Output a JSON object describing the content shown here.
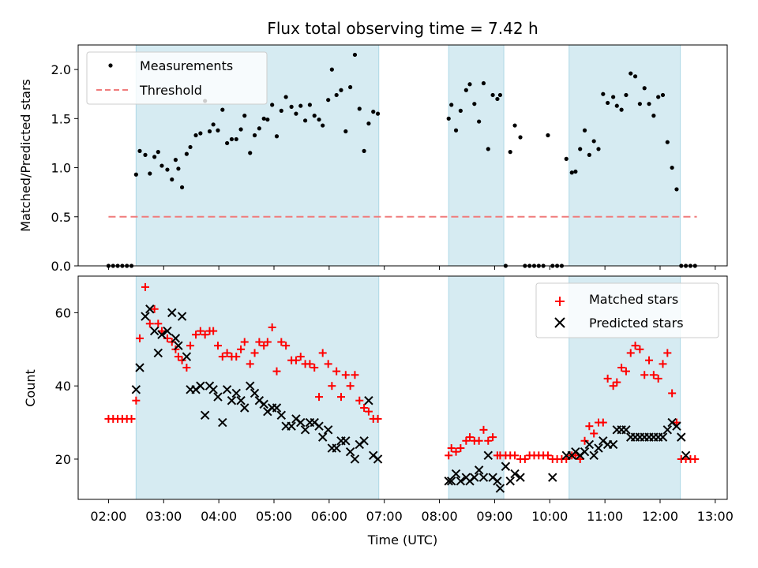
{
  "chart_data": [
    {
      "type": "scatter",
      "title": "Flux total observing time = 7.42 h",
      "xlabel": "",
      "ylabel": "Matched/Predicted stars",
      "xlim": [
        "01:27",
        "13:13"
      ],
      "ylim": [
        0,
        2.25
      ],
      "yticks": [
        "0.0",
        "0.5",
        "1.0",
        "1.5",
        "2.0"
      ],
      "grid": false,
      "legend_position": "top-left",
      "observing_windows": [
        [
          "02:30",
          "06:54"
        ],
        [
          "08:10",
          "09:10"
        ],
        [
          "10:21",
          "12:22"
        ]
      ],
      "threshold": {
        "name": "Threshold",
        "value": 0.5,
        "x_range": [
          "02:00",
          "12:40"
        ],
        "color": "#f07c7c"
      },
      "series": [
        {
          "name": "Measurements",
          "color": "#000000",
          "x": [
            "02:00",
            "02:05",
            "02:10",
            "02:15",
            "02:20",
            "02:25",
            "02:30",
            "02:34",
            "02:40",
            "02:45",
            "02:50",
            "02:54",
            "02:58",
            "03:04",
            "03:09",
            "03:13",
            "03:16",
            "03:20",
            "03:25",
            "03:29",
            "03:35",
            "03:40",
            "03:45",
            "03:50",
            "03:54",
            "03:59",
            "04:04",
            "04:09",
            "04:14",
            "04:19",
            "04:24",
            "04:28",
            "04:34",
            "04:39",
            "04:44",
            "04:49",
            "04:53",
            "04:58",
            "05:03",
            "05:08",
            "05:13",
            "05:19",
            "05:24",
            "05:29",
            "05:34",
            "05:39",
            "05:44",
            "05:49",
            "05:53",
            "05:59",
            "06:03",
            "06:08",
            "06:13",
            "06:18",
            "06:23",
            "06:28",
            "06:33",
            "06:38",
            "06:43",
            "06:48",
            "06:53",
            "08:10",
            "08:13",
            "08:18",
            "08:23",
            "08:29",
            "08:33",
            "08:38",
            "08:43",
            "08:48",
            "08:53",
            "08:58",
            "09:03",
            "09:06",
            "09:12",
            "09:17",
            "09:22",
            "09:28",
            "09:33",
            "09:38",
            "09:43",
            "09:48",
            "09:53",
            "09:58",
            "10:03",
            "10:08",
            "10:13",
            "10:18",
            "10:24",
            "10:28",
            "10:33",
            "10:38",
            "10:43",
            "10:48",
            "10:53",
            "10:58",
            "11:03",
            "11:09",
            "11:13",
            "11:18",
            "11:23",
            "11:28",
            "11:33",
            "11:38",
            "11:43",
            "11:48",
            "11:53",
            "11:58",
            "12:03",
            "12:08",
            "12:13",
            "12:18",
            "12:23",
            "12:28",
            "12:33",
            "12:38"
          ],
          "y": [
            0,
            0,
            0,
            0,
            0,
            0,
            0.93,
            1.17,
            1.13,
            0.94,
            1.11,
            1.16,
            1.02,
            0.98,
            0.88,
            1.08,
            0.99,
            0.8,
            1.14,
            1.21,
            1.33,
            1.35,
            1.68,
            1.37,
            1.44,
            1.38,
            1.59,
            1.25,
            1.29,
            1.29,
            1.39,
            1.53,
            1.15,
            1.33,
            1.4,
            1.5,
            1.49,
            1.64,
            1.32,
            1.58,
            1.72,
            1.62,
            1.55,
            1.63,
            1.48,
            1.64,
            1.53,
            1.49,
            1.43,
            1.69,
            2.0,
            1.74,
            1.79,
            1.37,
            1.82,
            2.15,
            1.6,
            1.17,
            1.45,
            1.57,
            1.55,
            1.5,
            1.64,
            1.38,
            1.58,
            1.79,
            1.85,
            1.65,
            1.47,
            1.86,
            1.19,
            1.74,
            1.7,
            1.74,
            0,
            1.16,
            1.43,
            1.31,
            0,
            0,
            0,
            0,
            0,
            1.33,
            0,
            0,
            0,
            1.09,
            0.95,
            0.96,
            1.19,
            1.38,
            1.13,
            1.27,
            1.19,
            1.75,
            1.66,
            1.72,
            1.63,
            1.59,
            1.74,
            1.96,
            1.93,
            1.65,
            1.81,
            1.65,
            1.53,
            1.72,
            1.74,
            1.26,
            1.0,
            0.78,
            0,
            0,
            0,
            0
          ]
        }
      ]
    },
    {
      "type": "scatter",
      "title": "",
      "xlabel": "Time (UTC)",
      "ylabel": "Count",
      "xlim": [
        "01:27",
        "13:13"
      ],
      "ylim": [
        9,
        70
      ],
      "yticks": [
        "20",
        "40",
        "60"
      ],
      "xticks": [
        "02:00",
        "03:00",
        "04:00",
        "05:00",
        "06:00",
        "07:00",
        "08:00",
        "09:00",
        "10:00",
        "11:00",
        "12:00",
        "13:00"
      ],
      "grid": false,
      "legend_position": "top-right",
      "observing_windows": [
        [
          "02:30",
          "06:54"
        ],
        [
          "08:10",
          "09:10"
        ],
        [
          "10:21",
          "12:22"
        ]
      ],
      "series": [
        {
          "name": "Matched stars",
          "marker": "plus",
          "color": "#ff0000",
          "x": [
            "02:00",
            "02:05",
            "02:10",
            "02:15",
            "02:20",
            "02:25",
            "02:30",
            "02:34",
            "02:40",
            "02:45",
            "02:50",
            "02:54",
            "02:58",
            "03:04",
            "03:09",
            "03:13",
            "03:16",
            "03:20",
            "03:25",
            "03:29",
            "03:35",
            "03:40",
            "03:45",
            "03:50",
            "03:54",
            "03:59",
            "04:04",
            "04:09",
            "04:14",
            "04:19",
            "04:24",
            "04:28",
            "04:34",
            "04:39",
            "04:44",
            "04:49",
            "04:53",
            "04:58",
            "05:03",
            "05:08",
            "05:13",
            "05:19",
            "05:24",
            "05:29",
            "05:34",
            "05:39",
            "05:44",
            "05:49",
            "05:53",
            "05:59",
            "06:03",
            "06:08",
            "06:13",
            "06:18",
            "06:23",
            "06:28",
            "06:33",
            "06:38",
            "06:43",
            "06:48",
            "06:53",
            "08:10",
            "08:13",
            "08:18",
            "08:23",
            "08:29",
            "08:33",
            "08:38",
            "08:43",
            "08:48",
            "08:53",
            "08:58",
            "09:03",
            "09:06",
            "09:12",
            "09:17",
            "09:22",
            "09:28",
            "09:33",
            "09:38",
            "09:43",
            "09:48",
            "09:53",
            "09:58",
            "10:03",
            "10:08",
            "10:13",
            "10:18",
            "10:24",
            "10:28",
            "10:33",
            "10:38",
            "10:43",
            "10:48",
            "10:53",
            "10:58",
            "11:03",
            "11:09",
            "11:13",
            "11:18",
            "11:23",
            "11:28",
            "11:33",
            "11:38",
            "11:43",
            "11:48",
            "11:53",
            "11:58",
            "12:03",
            "12:08",
            "12:13",
            "12:18",
            "12:23",
            "12:28",
            "12:33",
            "12:38"
          ],
          "y": [
            31,
            31,
            31,
            31,
            31,
            31,
            36,
            53,
            67,
            57,
            61,
            57,
            55,
            53,
            52,
            50,
            48,
            47,
            45,
            51,
            54,
            55,
            54,
            55,
            55,
            51,
            48,
            49,
            48,
            48,
            50,
            52,
            46,
            49,
            52,
            51,
            52,
            56,
            44,
            52,
            51,
            47,
            47,
            48,
            46,
            46,
            45,
            37,
            49,
            46,
            40,
            44,
            37,
            43,
            40,
            43,
            36,
            34,
            33,
            31,
            31,
            21,
            23,
            22,
            23,
            25,
            26,
            25,
            25,
            28,
            25,
            26,
            21,
            21,
            21,
            21,
            21,
            20,
            20,
            21,
            21,
            21,
            21,
            21,
            20,
            20,
            20,
            20,
            21,
            21,
            20,
            25,
            29,
            27,
            30,
            30,
            42,
            40,
            41,
            45,
            44,
            49,
            51,
            50,
            43,
            47,
            43,
            42,
            46,
            49,
            38,
            30,
            20,
            20,
            20,
            20
          ]
        },
        {
          "name": "Predicted stars",
          "marker": "x",
          "color": "#000000",
          "x": [
            "02:30",
            "02:34",
            "02:40",
            "02:45",
            "02:50",
            "02:54",
            "02:58",
            "03:04",
            "03:09",
            "03:13",
            "03:16",
            "03:20",
            "03:25",
            "03:29",
            "03:35",
            "03:40",
            "03:45",
            "03:50",
            "03:54",
            "03:59",
            "04:04",
            "04:09",
            "04:14",
            "04:19",
            "04:24",
            "04:28",
            "04:34",
            "04:39",
            "04:44",
            "04:49",
            "04:53",
            "04:58",
            "05:03",
            "05:08",
            "05:13",
            "05:19",
            "05:24",
            "05:29",
            "05:34",
            "05:39",
            "05:44",
            "05:49",
            "05:53",
            "05:59",
            "06:03",
            "06:08",
            "06:13",
            "06:18",
            "06:23",
            "06:28",
            "06:33",
            "06:38",
            "06:43",
            "06:48",
            "06:53",
            "08:10",
            "08:13",
            "08:18",
            "08:23",
            "08:29",
            "08:33",
            "08:38",
            "08:43",
            "08:48",
            "08:53",
            "08:58",
            "09:03",
            "09:06",
            "09:12",
            "09:17",
            "09:22",
            "09:28",
            "10:03",
            "10:18",
            "10:24",
            "10:28",
            "10:33",
            "10:38",
            "10:43",
            "10:48",
            "10:53",
            "10:58",
            "11:03",
            "11:09",
            "11:13",
            "11:18",
            "11:23",
            "11:28",
            "11:33",
            "11:38",
            "11:43",
            "11:48",
            "11:53",
            "11:58",
            "12:03",
            "12:08",
            "12:13",
            "12:18",
            "12:23",
            "12:28"
          ],
          "y": [
            39,
            45,
            59,
            61,
            55,
            49,
            54,
            55,
            60,
            53,
            51,
            59,
            48,
            39,
            39,
            40,
            32,
            40,
            39,
            37,
            30,
            39,
            36,
            38,
            36,
            34,
            40,
            38,
            36,
            35,
            33,
            34,
            34,
            32,
            29,
            29,
            31,
            30,
            28,
            30,
            30,
            29,
            26,
            28,
            23,
            23,
            25,
            25,
            22,
            20,
            24,
            25,
            36,
            21,
            20,
            14,
            14,
            16,
            14,
            15,
            14,
            15,
            17,
            15,
            21,
            15,
            14,
            12,
            18,
            14,
            16,
            15,
            15,
            21,
            21,
            22,
            21,
            22,
            24,
            21,
            23,
            25,
            24,
            24,
            28,
            28,
            28,
            26,
            26,
            26,
            26,
            26,
            26,
            26,
            26,
            28,
            30,
            29,
            26,
            21
          ]
        }
      ]
    }
  ]
}
